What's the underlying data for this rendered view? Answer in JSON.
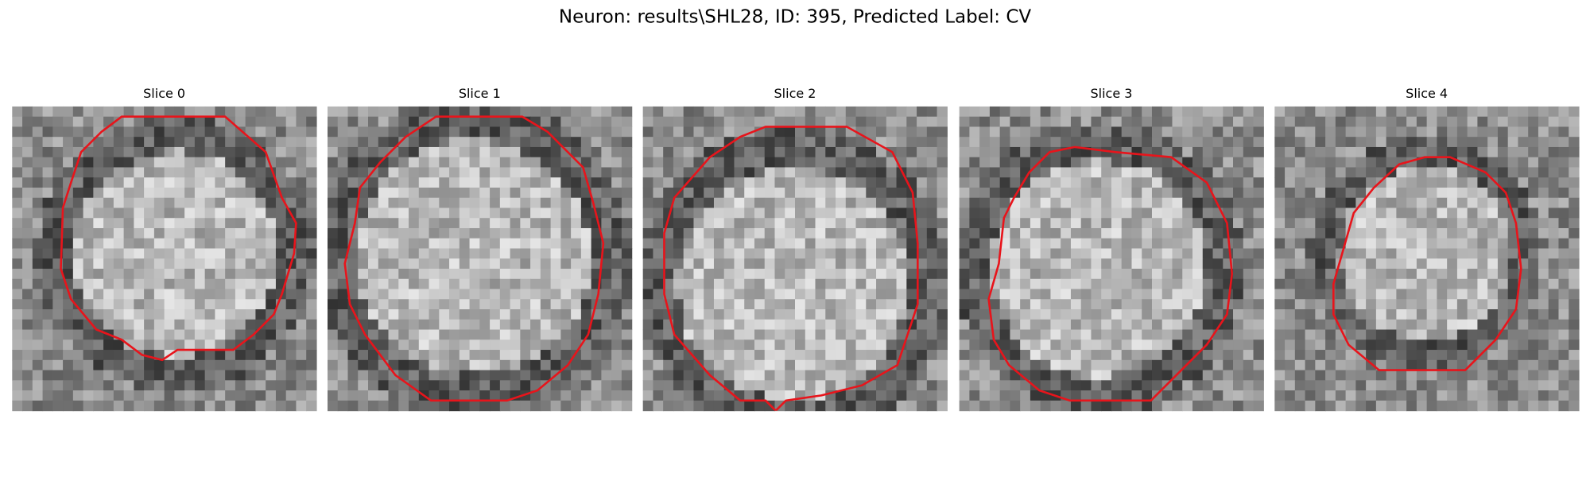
{
  "title": "Neuron: results\\SHL28, ID: 395, Predicted Label: CV",
  "panels": [
    {
      "title": "Slice 0"
    },
    {
      "title": "Slice 1"
    },
    {
      "title": "Slice 2"
    },
    {
      "title": "Slice 3"
    },
    {
      "title": "Slice 4"
    }
  ]
}
